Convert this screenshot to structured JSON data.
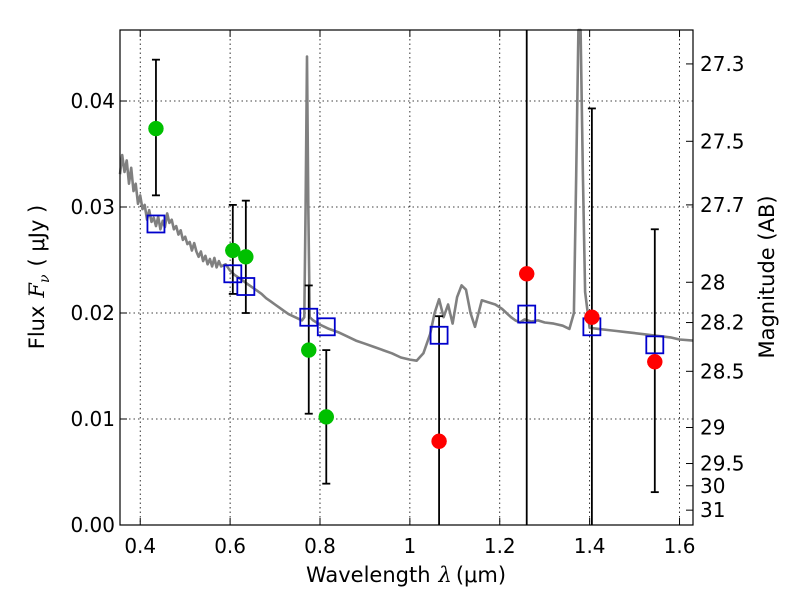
{
  "chart_data": {
    "type": "scatter",
    "title": "",
    "xlabel_main": "Wavelength",
    "xlabel_symbol": "λ",
    "xlabel_unit": "(μm)",
    "ylabel_main": "Flux",
    "ylabel_symbol": "F",
    "ylabel_subscript": "ν",
    "ylabel_unit": "( μJy )",
    "ylabel_right": "Magnitude (AB)",
    "xlim": [
      0.355,
      1.63
    ],
    "ylim": [
      0.0,
      0.0467
    ],
    "grid": true,
    "x_ticks": [
      0.4,
      0.6,
      0.8,
      1.0,
      1.2,
      1.4,
      1.6
    ],
    "x_tick_labels": [
      "0.4",
      "0.6",
      "0.8",
      "1",
      "1.2",
      "1.4",
      "1.6"
    ],
    "y_ticks": [
      0.0,
      0.01,
      0.02,
      0.03,
      0.04
    ],
    "y_tick_labels": [
      "0.00",
      "0.01",
      "0.02",
      "0.03",
      "0.04"
    ],
    "right_ticks": [
      {
        "label": "27.3",
        "flux": 0.0435
      },
      {
        "label": "27.5",
        "flux": 0.0362
      },
      {
        "label": "27.7",
        "flux": 0.0302
      },
      {
        "label": "28",
        "flux": 0.0229
      },
      {
        "label": "28.2",
        "flux": 0.0191
      },
      {
        "label": "28.5",
        "flux": 0.0145
      },
      {
        "label": "29",
        "flux": 0.0092
      },
      {
        "label": "29.5",
        "flux": 0.0058
      },
      {
        "label": "30",
        "flux": 0.0037
      },
      {
        "label": "31",
        "flux": 0.0014
      }
    ],
    "colors": {
      "model": "#808080",
      "green": "#00c000",
      "red": "#ff0000",
      "model_box": "#0000cc",
      "errorbar": "#000000"
    },
    "series": [
      {
        "points": [
          {
            "x": 0.435,
            "y": 0.0374,
            "lo": 0.0311,
            "hi": 0.0439
          },
          {
            "x": 0.606,
            "y": 0.0259,
            "lo": 0.0218,
            "hi": 0.0302
          },
          {
            "x": 0.635,
            "y": 0.0253,
            "lo": 0.02,
            "hi": 0.0306
          },
          {
            "x": 0.775,
            "y": 0.0165,
            "lo": 0.0105,
            "hi": 0.0226
          },
          {
            "x": 0.814,
            "y": 0.0102,
            "lo": 0.0039,
            "hi": 0.0165
          }
        ],
        "color": "#00c000"
      },
      {
        "points": [
          {
            "x": 1.065,
            "y": 0.0079,
            "lo": 0.0,
            "hi": 0.0197
          },
          {
            "x": 1.26,
            "y": 0.0237,
            "lo": 0.0,
            "hi": 0.0467
          },
          {
            "x": 1.405,
            "y": 0.0196,
            "lo": 0.0,
            "hi": 0.0393
          },
          {
            "x": 1.545,
            "y": 0.0154,
            "lo": 0.0031,
            "hi": 0.0279
          }
        ],
        "color": "#ff0000"
      },
      {
        "points": [
          {
            "x": 0.435,
            "y": 0.0284
          },
          {
            "x": 0.606,
            "y": 0.0237
          },
          {
            "x": 0.635,
            "y": 0.0225
          },
          {
            "x": 0.775,
            "y": 0.0196
          },
          {
            "x": 0.814,
            "y": 0.0187
          },
          {
            "x": 1.065,
            "y": 0.0179
          },
          {
            "x": 1.26,
            "y": 0.0199
          },
          {
            "x": 1.405,
            "y": 0.0187
          },
          {
            "x": 1.545,
            "y": 0.017
          }
        ],
        "color": "#0000cc"
      },
      {
        "points": [
          [
            0.355,
            0.0331
          ],
          [
            0.36,
            0.0349
          ],
          [
            0.365,
            0.0333
          ],
          [
            0.37,
            0.0344
          ],
          [
            0.375,
            0.0322
          ],
          [
            0.38,
            0.0337
          ],
          [
            0.385,
            0.0315
          ],
          [
            0.39,
            0.0322
          ],
          [
            0.395,
            0.0303
          ],
          [
            0.4,
            0.0311
          ],
          [
            0.405,
            0.0298
          ],
          [
            0.41,
            0.0302
          ],
          [
            0.415,
            0.0288
          ],
          [
            0.42,
            0.0297
          ],
          [
            0.425,
            0.0286
          ],
          [
            0.43,
            0.029
          ],
          [
            0.435,
            0.0282
          ],
          [
            0.44,
            0.0291
          ],
          [
            0.445,
            0.0279
          ],
          [
            0.45,
            0.0287
          ],
          [
            0.455,
            0.0281
          ],
          [
            0.46,
            0.0294
          ],
          [
            0.465,
            0.0285
          ],
          [
            0.47,
            0.0288
          ],
          [
            0.475,
            0.0279
          ],
          [
            0.48,
            0.0282
          ],
          [
            0.485,
            0.0274
          ],
          [
            0.49,
            0.0278
          ],
          [
            0.495,
            0.0269
          ],
          [
            0.5,
            0.0272
          ],
          [
            0.505,
            0.0265
          ],
          [
            0.51,
            0.0267
          ],
          [
            0.515,
            0.0259
          ],
          [
            0.52,
            0.0266
          ],
          [
            0.525,
            0.0258
          ],
          [
            0.53,
            0.0253
          ],
          [
            0.535,
            0.0258
          ],
          [
            0.54,
            0.0249
          ],
          [
            0.545,
            0.0254
          ],
          [
            0.55,
            0.0246
          ],
          [
            0.555,
            0.0251
          ],
          [
            0.56,
            0.0244
          ],
          [
            0.565,
            0.0252
          ],
          [
            0.57,
            0.0243
          ],
          [
            0.575,
            0.0249
          ],
          [
            0.58,
            0.0244
          ],
          [
            0.59,
            0.0246
          ],
          [
            0.6,
            0.024
          ],
          [
            0.61,
            0.0236
          ],
          [
            0.62,
            0.0233
          ],
          [
            0.63,
            0.023
          ],
          [
            0.64,
            0.0227
          ],
          [
            0.65,
            0.0224
          ],
          [
            0.66,
            0.0221
          ],
          [
            0.67,
            0.0218
          ],
          [
            0.68,
            0.0214
          ],
          [
            0.69,
            0.0211
          ],
          [
            0.7,
            0.0208
          ],
          [
            0.71,
            0.0205
          ],
          [
            0.72,
            0.0202
          ],
          [
            0.73,
            0.0199
          ],
          [
            0.74,
            0.0197
          ],
          [
            0.75,
            0.0195
          ],
          [
            0.76,
            0.0193
          ],
          [
            0.765,
            0.0196
          ],
          [
            0.768,
            0.03
          ],
          [
            0.771,
            0.0442
          ],
          [
            0.774,
            0.03
          ],
          [
            0.777,
            0.0196
          ],
          [
            0.785,
            0.0193
          ],
          [
            0.8,
            0.0189
          ],
          [
            0.82,
            0.0185
          ],
          [
            0.84,
            0.0182
          ],
          [
            0.86,
            0.0178
          ],
          [
            0.88,
            0.0174
          ],
          [
            0.9,
            0.0171
          ],
          [
            0.92,
            0.0168
          ],
          [
            0.94,
            0.0165
          ],
          [
            0.96,
            0.0162
          ],
          [
            0.98,
            0.0158
          ],
          [
            1.0,
            0.0156
          ],
          [
            1.015,
            0.0155
          ],
          [
            1.03,
            0.0162
          ],
          [
            1.045,
            0.018
          ],
          [
            1.055,
            0.02
          ],
          [
            1.065,
            0.0213
          ],
          [
            1.075,
            0.0196
          ],
          [
            1.085,
            0.0208
          ],
          [
            1.095,
            0.019
          ],
          [
            1.105,
            0.0215
          ],
          [
            1.115,
            0.0226
          ],
          [
            1.125,
            0.0222
          ],
          [
            1.135,
            0.02
          ],
          [
            1.145,
            0.0187
          ],
          [
            1.16,
            0.0212
          ],
          [
            1.175,
            0.021
          ],
          [
            1.19,
            0.0208
          ],
          [
            1.205,
            0.0204
          ],
          [
            1.215,
            0.02
          ],
          [
            1.225,
            0.0196
          ],
          [
            1.235,
            0.0193
          ],
          [
            1.245,
            0.0191
          ],
          [
            1.255,
            0.0194
          ],
          [
            1.27,
            0.0192
          ],
          [
            1.285,
            0.0193
          ],
          [
            1.3,
            0.0191
          ],
          [
            1.32,
            0.019
          ],
          [
            1.34,
            0.0188
          ],
          [
            1.355,
            0.0185
          ],
          [
            1.365,
            0.02
          ],
          [
            1.37,
            0.033
          ],
          [
            1.375,
            0.047
          ],
          [
            1.38,
            0.047
          ],
          [
            1.385,
            0.033
          ],
          [
            1.39,
            0.022
          ],
          [
            1.4,
            0.0186
          ],
          [
            1.42,
            0.0185
          ],
          [
            1.44,
            0.0184
          ],
          [
            1.46,
            0.0183
          ],
          [
            1.48,
            0.0182
          ],
          [
            1.5,
            0.0181
          ],
          [
            1.52,
            0.018
          ],
          [
            1.54,
            0.0179
          ],
          [
            1.56,
            0.0178
          ],
          [
            1.58,
            0.0177
          ],
          [
            1.6,
            0.0175
          ],
          [
            1.63,
            0.0174
          ]
        ],
        "color": "#808080"
      }
    ]
  }
}
